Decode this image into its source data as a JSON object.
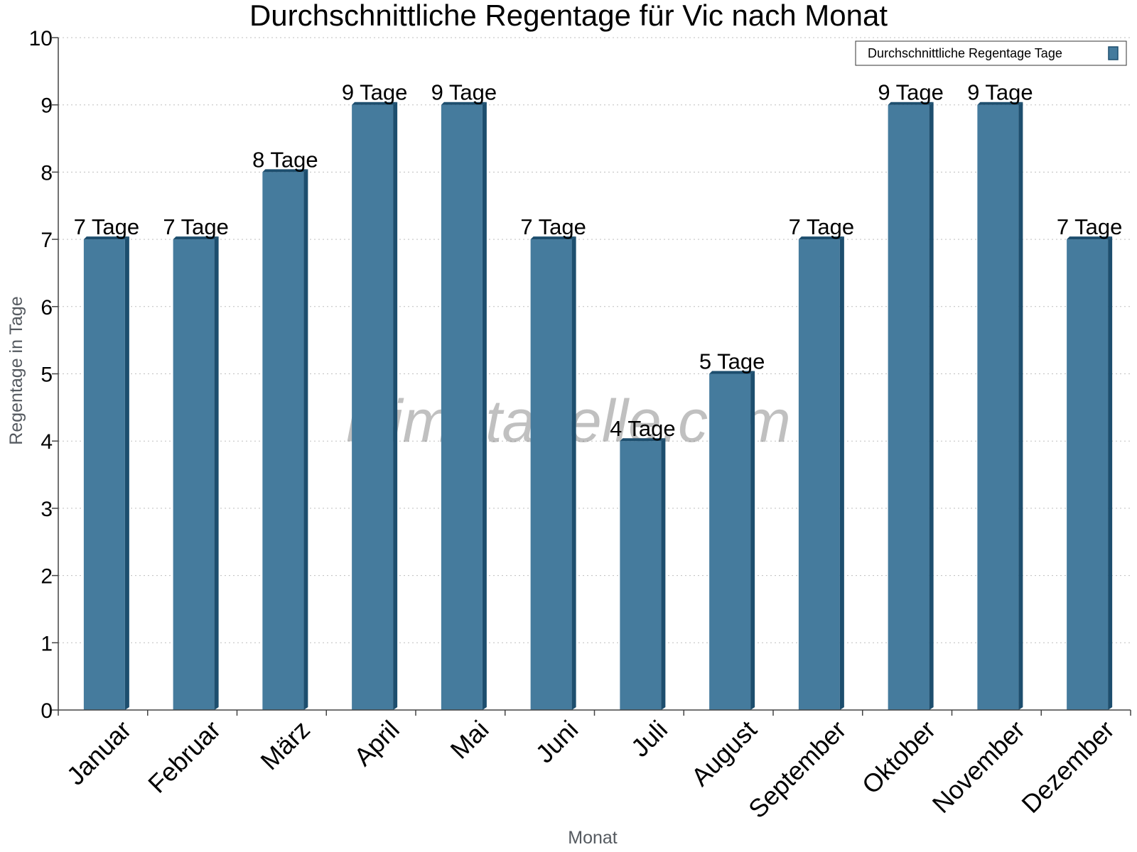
{
  "chart_data": {
    "type": "bar",
    "title": "Durchschnittliche Regentage für Vic nach Monat",
    "xlabel": "Monat",
    "ylabel": "Regentage in Tage",
    "categories": [
      "Januar",
      "Februar",
      "März",
      "April",
      "Mai",
      "Juni",
      "Juli",
      "August",
      "September",
      "Oktober",
      "November",
      "Dezember"
    ],
    "series": [
      {
        "name": "Durchschnittliche Regentage Tage",
        "values": [
          7,
          7,
          8,
          9,
          9,
          7,
          4,
          5,
          7,
          9,
          9,
          7
        ],
        "data_labels": [
          "7 Tage",
          "7 Tage",
          "8 Tage",
          "9 Tage",
          "9 Tage",
          "7 Tage",
          "4 Tage",
          "5 Tage",
          "7 Tage",
          "9 Tage",
          "9 Tage",
          "7 Tage"
        ]
      }
    ],
    "ylim": [
      0,
      10
    ],
    "y_ticks": [
      "0",
      "1",
      "2",
      "3",
      "4",
      "5",
      "6",
      "7",
      "8",
      "9",
      "10"
    ],
    "grid": true,
    "legend_position": "top-right",
    "watermark": "klimatabelle.com",
    "colors": {
      "bar": "#457b9d",
      "bar_side": "#1d4e6e",
      "grid": "#bfbfbf"
    }
  }
}
